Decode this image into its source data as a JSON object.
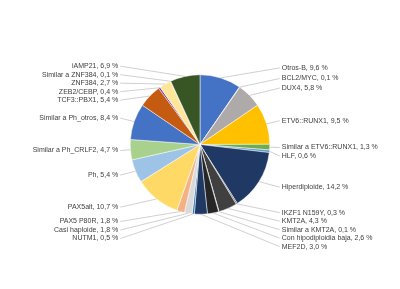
{
  "chart_data": {
    "type": "pie",
    "categories": [
      "Otros-B, 9,6 %",
      "BCL2/MYC, 0,1 %",
      "DUX4, 5,8 %",
      "ETV6::RUNX1, 9,5 %",
      "Similar a ETV6::RUNX1, 1,3 %",
      "HLF, 0,6 %",
      "Hiperdiploide, 14,2 %",
      "IKZF1 N159Y, 0,3 %",
      "KMT2A, 4,3 %",
      "Similar a KMT2A, 0,1 %",
      "Con hipodiploidia baja, 2,6 %",
      "MEF2D, 3,0 %",
      "NUTM1, 0,5 %",
      "Casi haploide, 1,8 %",
      "PAX5 P80R, 1,8 %",
      "PAX5alt, 10,7 %",
      "Ph, 5,4 %",
      "Similar a Ph_CRLF2, 4,7 %",
      "Similar a Ph_otros, 8,4 %",
      "TCF3::PBX1, 5,4 %",
      "ZEB2/CEBP, 0,4 %",
      "ZNF384, 2,7 %",
      "Similar a ZNF384, 0,1 %",
      "iAMP21, 6,9 %"
    ],
    "values": [
      9.6,
      0.1,
      5.8,
      9.5,
      1.3,
      0.6,
      14.2,
      0.3,
      4.3,
      0.1,
      2.6,
      3.0,
      0.5,
      1.8,
      1.8,
      10.7,
      5.4,
      4.7,
      8.4,
      5.4,
      0.4,
      2.7,
      0.1,
      6.9
    ],
    "colors": [
      "#4472C4",
      "#C0C0C0",
      "#AEAAAA",
      "#FFC000",
      "#70AD47",
      "#5B9BD5",
      "#203864",
      "#636363",
      "#404040",
      "#7B7B7B",
      "#262626",
      "#1F3864",
      "#2E75B6",
      "#D9D9D9",
      "#F4B183",
      "#FFD966",
      "#9DC3E6",
      "#A9D18E",
      "#4472C4",
      "#C55A11",
      "#7030A0",
      "#FFE699",
      "#D6DCE4",
      "#375623"
    ]
  }
}
